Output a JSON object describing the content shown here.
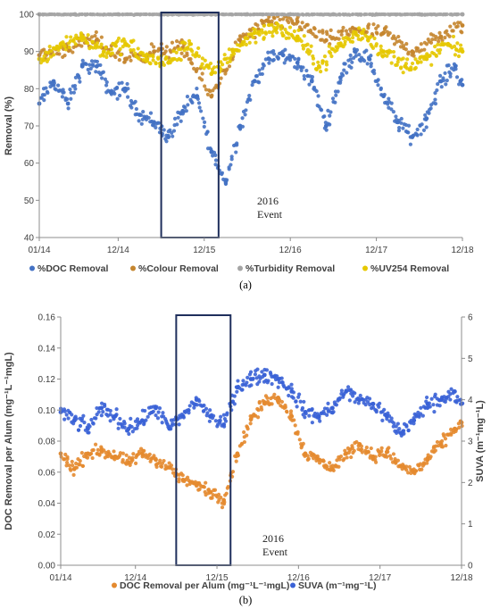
{
  "colors": {
    "doc": "#4472C4",
    "colour": "#C5862F",
    "turbidity": "#A5A5A5",
    "uv254": "#E6C800",
    "doc_per_alum": "#E48A2F",
    "suva": "#3A62D6",
    "event_box": "#1F2F5C",
    "axis": "#8C8C8C",
    "text": "#404040"
  },
  "chart_data": [
    {
      "type": "scatter",
      "panel_label": "(a)",
      "ylabel": "Removal (%)",
      "xlabel": "",
      "xlim": [
        "01/14",
        "12/18"
      ],
      "x_ticks": [
        "01/14",
        "12/14",
        "12/15",
        "12/16",
        "12/17",
        "12/18"
      ],
      "ylim": [
        40,
        100
      ],
      "y_ticks": [
        "40",
        "50",
        "60",
        "70",
        "80",
        "90",
        "100"
      ],
      "grid": false,
      "legend_position": "bottom",
      "annotation": {
        "line1": "2016",
        "line2": "Event",
        "x_start": "06/15",
        "x_end": "02/16"
      },
      "series": [
        {
          "name": "%DOC Removal",
          "x": [
            "01/14",
            "03/14",
            "05/14",
            "07/14",
            "09/14",
            "11/14",
            "01/15",
            "03/15",
            "05/15",
            "07/15",
            "09/15",
            "11/15",
            "01/16",
            "03/16",
            "05/16",
            "07/16",
            "09/16",
            "11/16",
            "01/17",
            "03/17",
            "05/17",
            "07/17",
            "09/17",
            "11/17",
            "01/18",
            "03/18",
            "05/18",
            "07/18",
            "09/18",
            "11/18",
            "12/18"
          ],
          "values": [
            76,
            82,
            76,
            86,
            86,
            79,
            80,
            73,
            71,
            67,
            74,
            78,
            63,
            55,
            70,
            82,
            88,
            89,
            87,
            82,
            70,
            83,
            90,
            88,
            78,
            71,
            67,
            72,
            82,
            86,
            81
          ]
        },
        {
          "name": "%Colour Removal",
          "x": [
            "01/14",
            "05/14",
            "09/14",
            "01/15",
            "05/15",
            "09/15",
            "01/16",
            "05/16",
            "09/16",
            "01/17",
            "05/17",
            "09/17",
            "01/18",
            "05/18",
            "09/18",
            "12/18"
          ],
          "values": [
            89,
            91,
            93,
            88,
            90,
            91,
            78,
            93,
            98,
            98,
            93,
            96,
            95,
            90,
            94,
            97
          ]
        },
        {
          "name": "%Turbidity Removal",
          "x": [
            "01/14",
            "06/14",
            "12/14",
            "06/15",
            "12/15",
            "06/16",
            "12/16",
            "06/17",
            "12/17",
            "06/18",
            "12/18"
          ],
          "values": [
            100,
            100,
            100,
            100,
            100,
            100,
            100,
            100,
            100,
            100,
            100
          ]
        },
        {
          "name": "%UV254 Removal",
          "x": [
            "01/14",
            "04/14",
            "07/14",
            "10/14",
            "01/15",
            "04/15",
            "07/15",
            "10/15",
            "01/16",
            "04/16",
            "07/16",
            "10/16",
            "01/17",
            "04/17",
            "07/17",
            "10/17",
            "01/18",
            "04/18",
            "07/18",
            "10/18",
            "12/18"
          ],
          "values": [
            88,
            92,
            94,
            90,
            92,
            88,
            87,
            92,
            84,
            90,
            95,
            96,
            94,
            86,
            92,
            95,
            90,
            86,
            88,
            92,
            90
          ]
        }
      ]
    },
    {
      "type": "scatter",
      "panel_label": "(b)",
      "ylabel": "DOC Removal per Alum (mg⁻¹L⁻¹mgL)",
      "y2label": "SUVA (m⁻¹mg⁻¹L)",
      "xlabel": "",
      "xlim": [
        "01/14",
        "12/18"
      ],
      "x_ticks": [
        "01/14",
        "12/14",
        "12/15",
        "12/16",
        "12/17",
        "12/18"
      ],
      "ylim": [
        0,
        0.16
      ],
      "y_ticks": [
        "0.00",
        "0.02",
        "0.04",
        "0.06",
        "0.08",
        "0.10",
        "0.12",
        "0.14",
        "0.16"
      ],
      "y2lim": [
        0,
        6
      ],
      "y2_ticks": [
        "0",
        "1",
        "2",
        "3",
        "4",
        "5",
        "6"
      ],
      "grid": false,
      "legend_position": "bottom",
      "annotation": {
        "line1": "2016",
        "line2": "Event",
        "x_start": "06/15",
        "x_end": "02/16"
      },
      "series": [
        {
          "name": "DOC Removal per Alum (mg⁻¹L⁻¹mgL)",
          "axis": "left",
          "x": [
            "01/14",
            "03/14",
            "05/14",
            "07/14",
            "09/14",
            "11/14",
            "01/15",
            "03/15",
            "05/15",
            "07/15",
            "09/15",
            "11/15",
            "01/16",
            "03/16",
            "05/16",
            "07/16",
            "09/16",
            "11/16",
            "01/17",
            "03/17",
            "05/17",
            "07/17",
            "09/17",
            "11/17",
            "01/18",
            "03/18",
            "05/18",
            "07/18",
            "09/18",
            "11/18",
            "12/18"
          ],
          "values": [
            0.072,
            0.062,
            0.072,
            0.074,
            0.07,
            0.066,
            0.072,
            0.068,
            0.063,
            0.055,
            0.052,
            0.047,
            0.042,
            0.072,
            0.094,
            0.105,
            0.108,
            0.096,
            0.072,
            0.068,
            0.062,
            0.072,
            0.078,
            0.07,
            0.073,
            0.064,
            0.06,
            0.068,
            0.078,
            0.088,
            0.092
          ]
        },
        {
          "name": "SUVA (m⁻¹mg⁻¹L)",
          "axis": "right",
          "x": [
            "01/14",
            "03/14",
            "05/14",
            "07/14",
            "09/14",
            "11/14",
            "01/15",
            "03/15",
            "05/15",
            "07/15",
            "09/15",
            "11/15",
            "01/16",
            "03/16",
            "05/16",
            "07/16",
            "09/16",
            "11/16",
            "01/17",
            "03/17",
            "05/17",
            "07/17",
            "09/17",
            "11/17",
            "01/18",
            "03/18",
            "05/18",
            "07/18",
            "09/18",
            "11/18",
            "12/18"
          ],
          "values": [
            3.7,
            3.5,
            3.3,
            3.8,
            3.6,
            3.3,
            3.5,
            3.8,
            3.3,
            3.6,
            4.0,
            3.6,
            3.4,
            4.3,
            4.5,
            4.6,
            4.5,
            4.2,
            3.7,
            3.6,
            3.8,
            4.2,
            4.0,
            3.9,
            3.6,
            3.2,
            3.5,
            3.9,
            4.0,
            4.2,
            3.9
          ]
        }
      ]
    }
  ]
}
